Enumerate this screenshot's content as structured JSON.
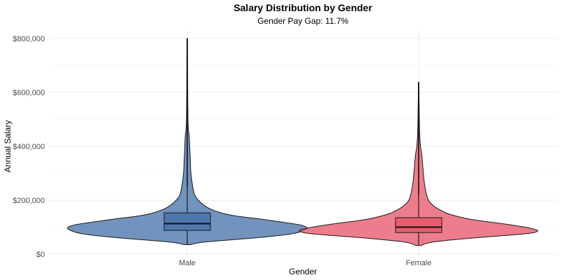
{
  "chart_data": {
    "type": "violin",
    "title": "Salary Distribution by Gender",
    "subtitle": "Gender Pay Gap: 11.7%",
    "xlabel": "Gender",
    "ylabel": "Annual Salary",
    "ylim": [
      0,
      800000
    ],
    "y_ticks": [
      0,
      200000,
      400000,
      600000,
      800000
    ],
    "y_tick_labels": [
      "$0",
      "$200,000",
      "$400,000",
      "$600,000",
      "$800,000"
    ],
    "categories": [
      "Male",
      "Female"
    ],
    "grid": true,
    "series": [
      {
        "name": "Male",
        "color": "#4a74aa",
        "min": 35000,
        "max": 800000,
        "q1": 88000,
        "median": 113000,
        "q3": 153000,
        "whisker_low": 35000,
        "whisker_high": 250000,
        "density": [
          [
            35000,
            0.02
          ],
          [
            45000,
            0.15
          ],
          [
            60000,
            0.55
          ],
          [
            75000,
            0.85
          ],
          [
            90000,
            0.96
          ],
          [
            100000,
            0.97
          ],
          [
            110000,
            0.9
          ],
          [
            120000,
            0.75
          ],
          [
            130000,
            0.6
          ],
          [
            140000,
            0.42
          ],
          [
            150000,
            0.3
          ],
          [
            165000,
            0.2
          ],
          [
            180000,
            0.14
          ],
          [
            200000,
            0.09
          ],
          [
            220000,
            0.06
          ],
          [
            250000,
            0.045
          ],
          [
            300000,
            0.03
          ],
          [
            350000,
            0.025
          ],
          [
            400000,
            0.02
          ],
          [
            440000,
            0.016
          ],
          [
            460000,
            0.01
          ],
          [
            500000,
            0.006
          ],
          [
            600000,
            0.004
          ],
          [
            700000,
            0.003
          ],
          [
            800000,
            0.002
          ]
        ]
      },
      {
        "name": "Female",
        "color": "#e8596c",
        "min": 32000,
        "max": 638000,
        "q1": 80000,
        "median": 100000,
        "q3": 135000,
        "whisker_low": 32000,
        "whisker_high": 220000,
        "density": [
          [
            32000,
            0.02
          ],
          [
            45000,
            0.12
          ],
          [
            60000,
            0.45
          ],
          [
            75000,
            0.86
          ],
          [
            85000,
            0.97
          ],
          [
            95000,
            0.92
          ],
          [
            105000,
            0.8
          ],
          [
            115000,
            0.65
          ],
          [
            125000,
            0.48
          ],
          [
            135000,
            0.36
          ],
          [
            150000,
            0.24
          ],
          [
            165000,
            0.17
          ],
          [
            180000,
            0.12
          ],
          [
            200000,
            0.08
          ],
          [
            230000,
            0.06
          ],
          [
            270000,
            0.045
          ],
          [
            320000,
            0.035
          ],
          [
            370000,
            0.025
          ],
          [
            400000,
            0.015
          ],
          [
            450000,
            0.008
          ],
          [
            550000,
            0.004
          ],
          [
            638000,
            0.002
          ]
        ]
      }
    ]
  }
}
